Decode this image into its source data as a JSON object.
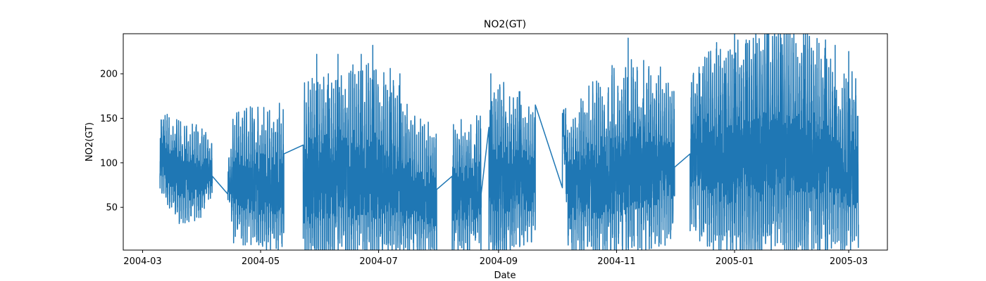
{
  "chart_data": {
    "type": "line",
    "title": "NO2(GT)",
    "xlabel": "Date",
    "ylabel": "NO2(GT)",
    "x_type": "date",
    "xlim": [
      "2004-02-20",
      "2005-03-21"
    ],
    "ylim": [
      2,
      245
    ],
    "x_ticks": [
      "2004-03",
      "2004-05",
      "2004-07",
      "2004-09",
      "2004-11",
      "2005-01",
      "2005-03"
    ],
    "x_tick_dates": [
      "2004-03-01",
      "2004-05-01",
      "2004-07-01",
      "2004-09-01",
      "2004-11-01",
      "2005-01-01",
      "2005-03-01"
    ],
    "y_ticks": [
      50,
      100,
      150,
      200
    ],
    "y_tick_labels": [
      "50",
      "100",
      "150",
      "200"
    ],
    "grid": false,
    "line_color": "#1f77b4",
    "series": [
      {
        "name": "",
        "profile": [
          [
            "2004-03-10",
            90,
            125,
            25
          ],
          [
            "2004-03-20",
            58,
            112,
            28
          ],
          [
            "2004-03-31",
            60,
            115,
            25
          ],
          [
            "2004-04-05",
            75,
            105,
            15
          ],
          [
            "2004-04-15",
            60,
            95,
            10
          ],
          [
            "2004-04-17",
            40,
            115,
            30
          ],
          [
            "2004-05-01",
            35,
            120,
            35
          ],
          [
            "2004-05-15",
            30,
            115,
            35
          ],
          [
            "2004-05-25",
            30,
            130,
            45
          ],
          [
            "2004-06-10",
            28,
            140,
            48
          ],
          [
            "2004-06-25",
            28,
            145,
            45
          ],
          [
            "2004-07-10",
            25,
            140,
            40
          ],
          [
            "2004-07-20",
            20,
            105,
            30
          ],
          [
            "2004-08-05",
            22,
            95,
            30
          ],
          [
            "2004-08-20",
            35,
            110,
            35
          ],
          [
            "2004-09-01",
            20,
            140,
            40
          ],
          [
            "2004-09-10",
            35,
            130,
            35
          ],
          [
            "2004-09-18",
            40,
            120,
            30
          ],
          [
            "2004-09-26",
            75,
            90,
            10
          ],
          [
            "2004-10-04",
            150,
            155,
            10
          ],
          [
            "2004-10-07",
            30,
            110,
            35
          ],
          [
            "2004-10-25",
            30,
            140,
            45
          ],
          [
            "2004-11-10",
            40,
            150,
            45
          ],
          [
            "2004-11-25",
            45,
            150,
            40
          ],
          [
            "2004-12-03",
            50,
            130,
            30
          ],
          [
            "2004-12-10",
            60,
            160,
            40
          ],
          [
            "2004-12-25",
            35,
            170,
            45
          ],
          [
            "2005-01-10",
            30,
            185,
            45
          ],
          [
            "2005-01-25",
            35,
            190,
            45
          ],
          [
            "2005-02-10",
            35,
            180,
            45
          ],
          [
            "2005-02-25",
            40,
            150,
            40
          ],
          [
            "2005-03-06",
            40,
            145,
            40
          ]
        ],
        "gaps": [
          [
            "2004-04-06",
            "2004-04-14",
            85,
            65
          ],
          [
            "2004-05-13",
            "2004-05-23",
            110,
            120
          ],
          [
            "2004-07-31",
            "2004-08-08",
            70,
            85
          ],
          [
            "2004-08-23",
            "2004-08-27",
            65,
            140
          ],
          [
            "2004-09-20",
            "2004-10-04",
            165,
            72
          ],
          [
            "2004-12-01",
            "2004-12-09",
            95,
            110
          ]
        ],
        "spikes": [
          [
            "2004-05-30",
            222
          ],
          [
            "2004-06-05",
            200
          ],
          [
            "2004-06-10",
            222
          ],
          [
            "2004-06-22",
            222
          ],
          [
            "2004-06-28",
            232
          ],
          [
            "2004-07-07",
            206
          ],
          [
            "2004-07-12",
            200
          ],
          [
            "2004-08-28",
            200
          ],
          [
            "2004-09-01",
            2
          ],
          [
            "2004-09-12",
            180
          ],
          [
            "2004-11-07",
            240
          ],
          [
            "2004-11-15",
            215
          ],
          [
            "2004-12-14",
            200
          ],
          [
            "2004-12-27",
            200
          ],
          [
            "2005-01-01",
            245
          ],
          [
            "2005-01-07",
            238
          ],
          [
            "2005-01-12",
            245
          ],
          [
            "2005-01-18",
            245
          ],
          [
            "2005-01-25",
            240
          ],
          [
            "2005-02-06",
            232
          ],
          [
            "2005-02-17",
            238
          ],
          [
            "2005-02-22",
            232
          ],
          [
            "2005-03-01",
            225
          ]
        ]
      }
    ]
  }
}
